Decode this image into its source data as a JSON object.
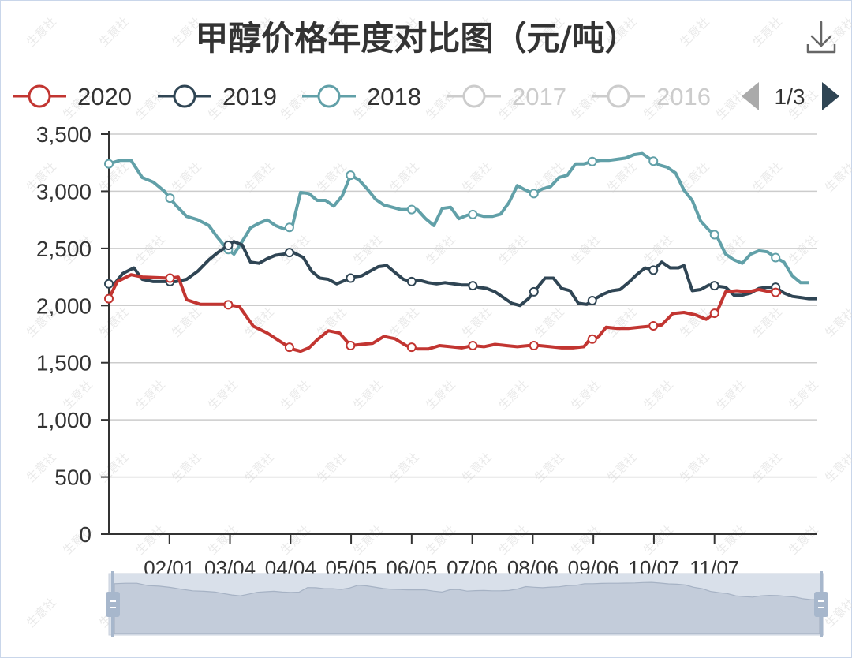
{
  "chart_data": {
    "type": "line",
    "title": "甲醇价格年度对比图（元/吨）",
    "watermark": "生意社",
    "legend": {
      "placement": "top",
      "items": [
        {
          "name": "2020",
          "color": "#c23531",
          "active": true
        },
        {
          "name": "2019",
          "color": "#2f4554",
          "active": true
        },
        {
          "name": "2018",
          "color": "#61a0a8",
          "active": true
        },
        {
          "name": "2017",
          "color": "#cccccc",
          "active": false
        },
        {
          "name": "2016",
          "color": "#cccccc",
          "active": false
        }
      ],
      "page_label": "1/3"
    },
    "y_ticks": [
      "0",
      "500",
      "1,000",
      "1,500",
      "2,000",
      "2,500",
      "3,000",
      "3,500"
    ],
    "ylim": [
      0,
      3500
    ],
    "x_ticks": [
      "02/01",
      "03/04",
      "04/04",
      "05/05",
      "06/05",
      "07/06",
      "08/06",
      "09/06",
      "10/07",
      "11/07"
    ],
    "grid": true,
    "series": [
      {
        "name": "2020",
        "color": "#c23531",
        "points": [
          [
            0,
            2060
          ],
          [
            3,
            2210
          ],
          [
            8,
            2270
          ],
          [
            12,
            2250
          ],
          [
            22,
            2240
          ],
          [
            25,
            2250
          ],
          [
            28,
            2050
          ],
          [
            33,
            2010
          ],
          [
            38,
            2010
          ],
          [
            42,
            2010
          ],
          [
            47,
            1990
          ],
          [
            52,
            1820
          ],
          [
            57,
            1760
          ],
          [
            62,
            1680
          ],
          [
            66,
            1620
          ],
          [
            69,
            1600
          ],
          [
            72,
            1630
          ],
          [
            75,
            1700
          ],
          [
            79,
            1780
          ],
          [
            83,
            1760
          ],
          [
            87,
            1650
          ],
          [
            91,
            1660
          ],
          [
            95,
            1670
          ],
          [
            99,
            1730
          ],
          [
            103,
            1710
          ],
          [
            107,
            1650
          ],
          [
            111,
            1620
          ],
          [
            115,
            1620
          ],
          [
            119,
            1650
          ],
          [
            123,
            1640
          ],
          [
            127,
            1630
          ],
          [
            131,
            1650
          ],
          [
            135,
            1640
          ],
          [
            139,
            1660
          ],
          [
            143,
            1650
          ],
          [
            147,
            1640
          ],
          [
            151,
            1650
          ],
          [
            155,
            1650
          ],
          [
            159,
            1640
          ],
          [
            163,
            1630
          ],
          [
            167,
            1630
          ],
          [
            171,
            1640
          ],
          [
            173,
            1700
          ],
          [
            176,
            1720
          ],
          [
            179,
            1810
          ],
          [
            183,
            1800
          ],
          [
            187,
            1800
          ],
          [
            191,
            1810
          ],
          [
            195,
            1820
          ],
          [
            199,
            1830
          ],
          [
            203,
            1930
          ],
          [
            207,
            1940
          ],
          [
            211,
            1920
          ],
          [
            215,
            1880
          ],
          [
            219,
            1950
          ],
          [
            222,
            2120
          ],
          [
            226,
            2130
          ],
          [
            230,
            2120
          ],
          [
            234,
            2140
          ],
          [
            238,
            2120
          ],
          [
            242,
            2110
          ]
        ]
      },
      {
        "name": "2019",
        "color": "#2f4554",
        "points": [
          [
            0,
            2190
          ],
          [
            2,
            2190
          ],
          [
            5,
            2280
          ],
          [
            9,
            2330
          ],
          [
            12,
            2230
          ],
          [
            16,
            2210
          ],
          [
            20,
            2210
          ],
          [
            24,
            2210
          ],
          [
            28,
            2230
          ],
          [
            32,
            2300
          ],
          [
            36,
            2400
          ],
          [
            39,
            2460
          ],
          [
            42,
            2510
          ],
          [
            45,
            2560
          ],
          [
            48,
            2530
          ],
          [
            51,
            2380
          ],
          [
            54,
            2370
          ],
          [
            57,
            2410
          ],
          [
            60,
            2440
          ],
          [
            63,
            2450
          ],
          [
            66,
            2470
          ],
          [
            70,
            2420
          ],
          [
            73,
            2300
          ],
          [
            76,
            2240
          ],
          [
            79,
            2230
          ],
          [
            82,
            2190
          ],
          [
            85,
            2220
          ],
          [
            88,
            2250
          ],
          [
            91,
            2260
          ],
          [
            94,
            2300
          ],
          [
            97,
            2340
          ],
          [
            100,
            2350
          ],
          [
            103,
            2290
          ],
          [
            106,
            2230
          ],
          [
            109,
            2210
          ],
          [
            112,
            2220
          ],
          [
            115,
            2200
          ],
          [
            118,
            2190
          ],
          [
            121,
            2200
          ],
          [
            124,
            2190
          ],
          [
            127,
            2180
          ],
          [
            130,
            2180
          ],
          [
            133,
            2160
          ],
          [
            136,
            2150
          ],
          [
            139,
            2120
          ],
          [
            142,
            2070
          ],
          [
            145,
            2020
          ],
          [
            148,
            2000
          ],
          [
            151,
            2060
          ],
          [
            154,
            2150
          ],
          [
            157,
            2240
          ],
          [
            160,
            2240
          ],
          [
            163,
            2150
          ],
          [
            166,
            2130
          ],
          [
            169,
            2020
          ],
          [
            172,
            2010
          ],
          [
            175,
            2060
          ],
          [
            178,
            2100
          ],
          [
            181,
            2130
          ],
          [
            184,
            2140
          ],
          [
            187,
            2200
          ],
          [
            190,
            2270
          ],
          [
            193,
            2330
          ],
          [
            196,
            2310
          ],
          [
            199,
            2380
          ],
          [
            202,
            2330
          ],
          [
            205,
            2330
          ],
          [
            207,
            2350
          ],
          [
            210,
            2130
          ],
          [
            213,
            2140
          ],
          [
            216,
            2180
          ],
          [
            219,
            2170
          ],
          [
            222,
            2160
          ],
          [
            225,
            2090
          ],
          [
            228,
            2090
          ],
          [
            231,
            2110
          ],
          [
            234,
            2150
          ],
          [
            237,
            2160
          ],
          [
            240,
            2160
          ],
          [
            243,
            2110
          ],
          [
            246,
            2080
          ],
          [
            249,
            2070
          ],
          [
            252,
            2060
          ],
          [
            255,
            2060
          ]
        ]
      },
      {
        "name": "2018",
        "color": "#61a0a8",
        "points": [
          [
            0,
            3240
          ],
          [
            4,
            3270
          ],
          [
            8,
            3270
          ],
          [
            12,
            3120
          ],
          [
            16,
            3080
          ],
          [
            20,
            3000
          ],
          [
            24,
            2880
          ],
          [
            28,
            2780
          ],
          [
            32,
            2750
          ],
          [
            36,
            2700
          ],
          [
            39,
            2600
          ],
          [
            42,
            2510
          ],
          [
            45,
            2450
          ],
          [
            48,
            2560
          ],
          [
            51,
            2680
          ],
          [
            54,
            2720
          ],
          [
            57,
            2750
          ],
          [
            60,
            2700
          ],
          [
            63,
            2670
          ],
          [
            66,
            2690
          ],
          [
            69,
            2990
          ],
          [
            72,
            2980
          ],
          [
            75,
            2920
          ],
          [
            78,
            2920
          ],
          [
            81,
            2870
          ],
          [
            84,
            2960
          ],
          [
            87,
            3140
          ],
          [
            90,
            3100
          ],
          [
            93,
            3020
          ],
          [
            96,
            2930
          ],
          [
            99,
            2880
          ],
          [
            102,
            2860
          ],
          [
            105,
            2840
          ],
          [
            108,
            2840
          ],
          [
            111,
            2840
          ],
          [
            114,
            2760
          ],
          [
            117,
            2700
          ],
          [
            120,
            2850
          ],
          [
            123,
            2860
          ],
          [
            126,
            2760
          ],
          [
            129,
            2790
          ],
          [
            132,
            2800
          ],
          [
            135,
            2780
          ],
          [
            138,
            2780
          ],
          [
            141,
            2800
          ],
          [
            144,
            2900
          ],
          [
            147,
            3050
          ],
          [
            150,
            3010
          ],
          [
            153,
            2980
          ],
          [
            156,
            3020
          ],
          [
            159,
            3040
          ],
          [
            162,
            3120
          ],
          [
            165,
            3140
          ],
          [
            168,
            3240
          ],
          [
            171,
            3240
          ],
          [
            174,
            3260
          ],
          [
            177,
            3270
          ],
          [
            180,
            3270
          ],
          [
            183,
            3280
          ],
          [
            186,
            3290
          ],
          [
            189,
            3320
          ],
          [
            192,
            3330
          ],
          [
            195,
            3280
          ],
          [
            198,
            3230
          ],
          [
            201,
            3210
          ],
          [
            204,
            3160
          ],
          [
            207,
            3010
          ],
          [
            210,
            2920
          ],
          [
            213,
            2740
          ],
          [
            216,
            2660
          ],
          [
            219,
            2600
          ],
          [
            222,
            2450
          ],
          [
            225,
            2400
          ],
          [
            228,
            2370
          ],
          [
            231,
            2450
          ],
          [
            234,
            2480
          ],
          [
            237,
            2470
          ],
          [
            240,
            2420
          ],
          [
            243,
            2380
          ],
          [
            246,
            2260
          ],
          [
            249,
            2200
          ],
          [
            252,
            2200
          ]
        ]
      }
    ]
  }
}
